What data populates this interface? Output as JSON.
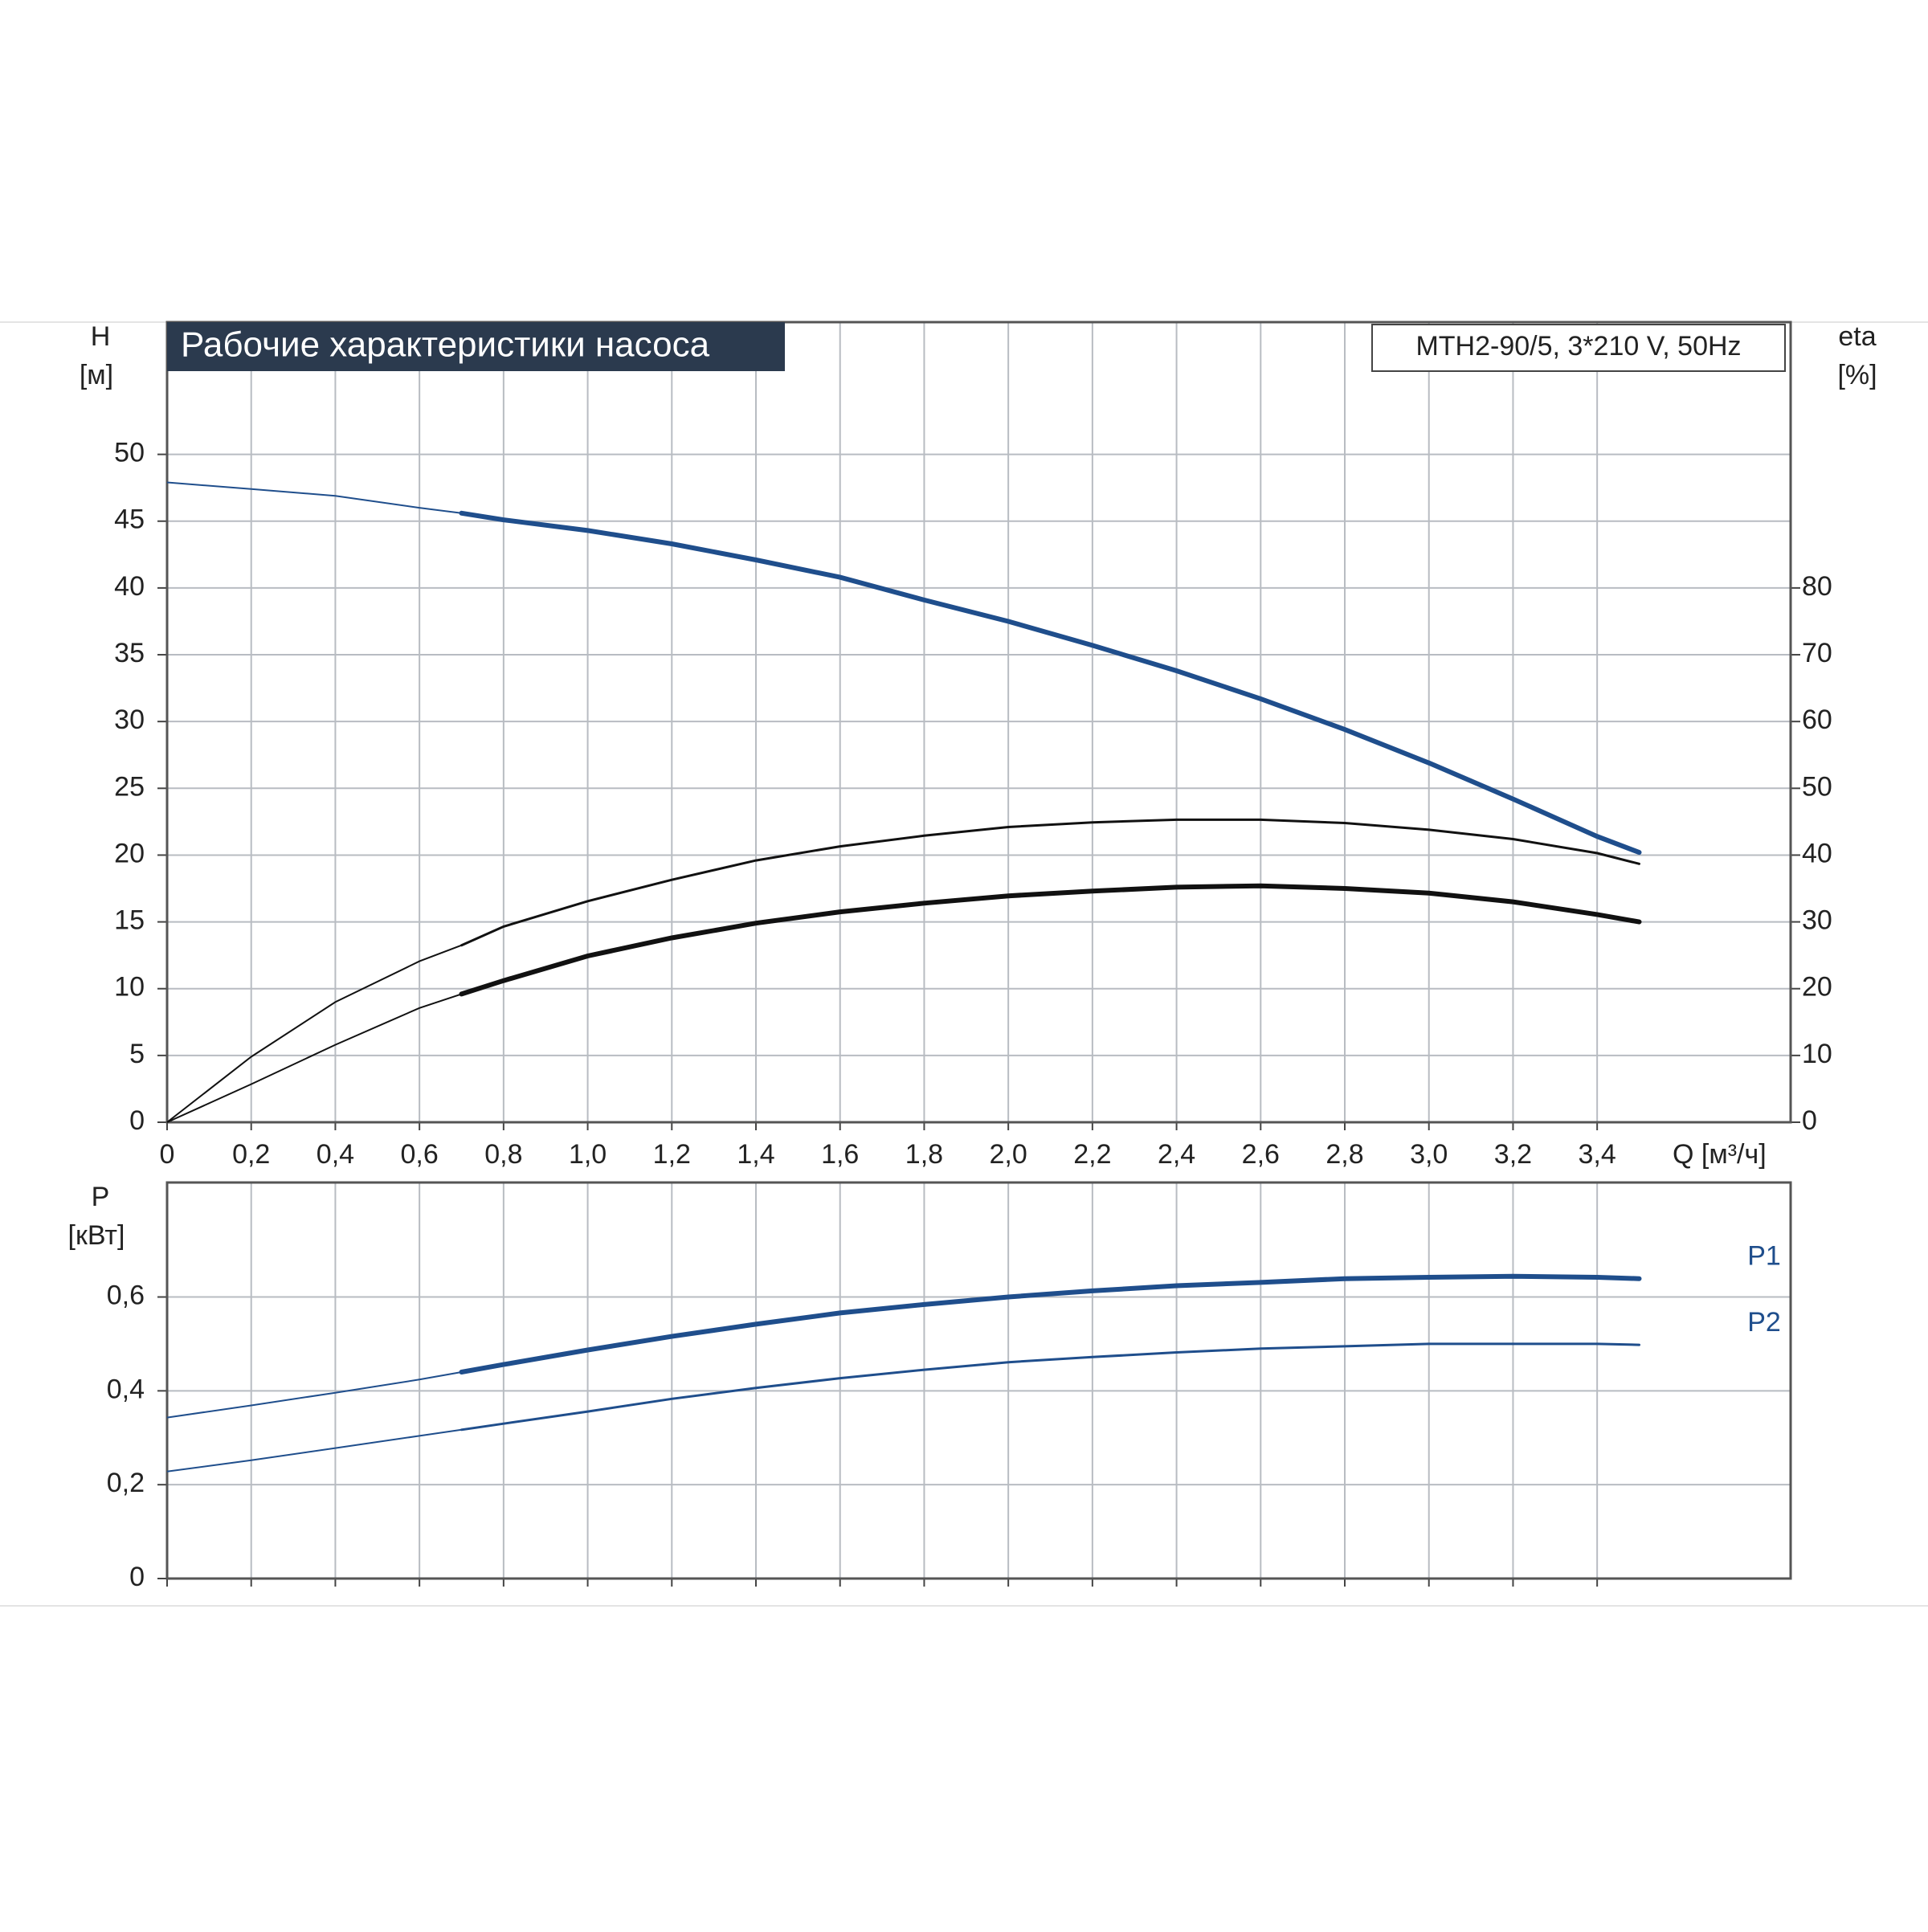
{
  "header": {
    "title": "Рабочие характеристики насоса",
    "model": "MTH2-90/5, 3*210 V, 50Hz"
  },
  "chart_data": [
    {
      "type": "line",
      "xlabel": "Q [м³/ч]",
      "ylabel": "H",
      "yunit": "[м]",
      "y2label": "eta",
      "y2unit": "[%]",
      "xlim": [
        0,
        3.86
      ],
      "ylim": [
        0,
        59.9
      ],
      "y2lim": [
        0,
        119.8
      ],
      "xticks": [
        0,
        {
          "value": 0.2,
          "label": "0,2"
        },
        {
          "value": 0.4,
          "label": "0,4"
        },
        {
          "value": 0.6,
          "label": "0,6"
        },
        {
          "value": 0.8,
          "label": "0,8"
        },
        {
          "value": 1.0,
          "label": "1,0"
        },
        {
          "value": 1.2,
          "label": "1,2"
        },
        {
          "value": 1.4,
          "label": "1,4"
        },
        {
          "value": 1.6,
          "label": "1,6"
        },
        {
          "value": 1.8,
          "label": "1,8"
        },
        {
          "value": 2.0,
          "label": "2,0"
        },
        {
          "value": 2.2,
          "label": "2,2"
        },
        {
          "value": 2.4,
          "label": "2,4"
        },
        {
          "value": 2.6,
          "label": "2,6"
        },
        {
          "value": 2.8,
          "label": "2,8"
        },
        {
          "value": 3.0,
          "label": "3,0"
        },
        {
          "value": 3.2,
          "label": "3,2"
        },
        {
          "value": 3.4,
          "label": "3,4"
        }
      ],
      "yticks": [
        0,
        5,
        10,
        15,
        20,
        25,
        30,
        35,
        40,
        45,
        50
      ],
      "y2ticks": [
        0,
        10,
        20,
        30,
        40,
        50,
        60,
        70,
        80
      ],
      "grid": true,
      "bold_from": 0.7,
      "x": [
        0,
        0.2,
        0.4,
        0.6,
        0.7,
        0.8,
        1.0,
        1.2,
        1.4,
        1.6,
        1.8,
        2.0,
        2.2,
        2.4,
        2.6,
        2.8,
        3.0,
        3.2,
        3.4,
        3.5
      ],
      "series": [
        {
          "color": "#1f4e8c",
          "width": 6,
          "values": [
            47.9,
            47.4,
            46.9,
            46.0,
            45.6,
            45.1,
            44.3,
            43.3,
            42.1,
            40.8,
            39.1,
            37.5,
            35.7,
            33.8,
            31.7,
            29.4,
            26.9,
            24.2,
            21.4,
            20.2
          ]
        },
        {
          "color": "#111111",
          "width": 3,
          "axis": "y2",
          "values": [
            0,
            9.8,
            18,
            24.1,
            26.5,
            29.3,
            33.1,
            36.3,
            39.2,
            41.3,
            42.9,
            44.2,
            44.9,
            45.3,
            45.3,
            44.8,
            43.8,
            42.4,
            40.3,
            38.7
          ]
        },
        {
          "color": "#111111",
          "width": 6,
          "axis": "y2",
          "values": [
            0,
            5.7,
            11.6,
            17.1,
            19.2,
            21.2,
            24.9,
            27.6,
            29.8,
            31.5,
            32.8,
            33.9,
            34.6,
            35.2,
            35.4,
            35.0,
            34.3,
            33.0,
            31.1,
            30.0
          ]
        }
      ]
    },
    {
      "type": "line",
      "ylabel": "P",
      "yunit": "[кВт]",
      "xlim": [
        0,
        3.86
      ],
      "ylim": [
        0,
        0.844
      ],
      "xticks": [
        0,
        0.2,
        0.4,
        0.6,
        0.8,
        1.0,
        1.2,
        1.4,
        1.6,
        1.8,
        2.0,
        2.2,
        2.4,
        2.6,
        2.8,
        3.0,
        3.2,
        3.4
      ],
      "yticks": [
        0,
        {
          "value": 0.2,
          "label": "0,2"
        },
        {
          "value": 0.4,
          "label": "0,4"
        },
        {
          "value": 0.6,
          "label": "0,6"
        }
      ],
      "grid": true,
      "bold_from": 0.7,
      "x": [
        0,
        0.2,
        0.4,
        0.6,
        0.7,
        0.8,
        1.0,
        1.2,
        1.4,
        1.6,
        1.8,
        2.0,
        2.2,
        2.4,
        2.6,
        2.8,
        3.0,
        3.2,
        3.4,
        3.5
      ],
      "series": [
        {
          "name": "P1",
          "color": "#1f4e8c",
          "width": 6,
          "values": [
            0.343,
            0.369,
            0.396,
            0.424,
            0.44,
            0.456,
            0.487,
            0.516,
            0.542,
            0.566,
            0.584,
            0.6,
            0.613,
            0.624,
            0.631,
            0.639,
            0.642,
            0.644,
            0.642,
            0.639
          ]
        },
        {
          "name": "P2",
          "color": "#1f4e8c",
          "width": 3,
          "values": [
            0.228,
            0.252,
            0.278,
            0.304,
            0.317,
            0.33,
            0.356,
            0.383,
            0.406,
            0.427,
            0.445,
            0.461,
            0.472,
            0.482,
            0.49,
            0.495,
            0.5,
            0.5,
            0.5,
            0.498
          ]
        }
      ]
    }
  ]
}
